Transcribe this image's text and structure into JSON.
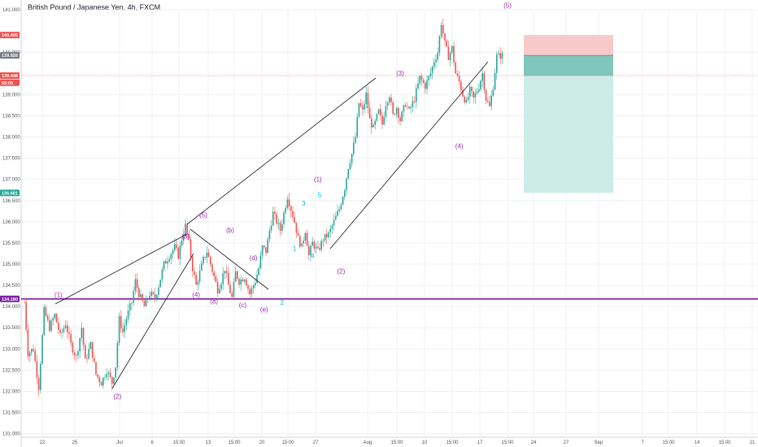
{
  "chart_title": "British Pound / Japanese Yen, 4h, FXCM",
  "colors": {
    "up": "#26a69a",
    "down": "#ef5350",
    "wave_primary": "#9c27b0",
    "wave_minor": "#00bcd4",
    "support": "#7b1fa2",
    "stop_zone": "#f8c9c9",
    "target_zone": "#cdece8",
    "entry_zone": "#7fc7bd",
    "trend_line": "#131722"
  },
  "chart_data": {
    "type": "candlestick",
    "x_ticks": [
      "22",
      "25",
      "Jul",
      "6",
      "15:00",
      "13",
      "15:00",
      "20",
      "15:00",
      "27",
      "Aug",
      "15:00",
      "10",
      "15:00",
      "17",
      "15:00",
      "24",
      "27",
      "Sep",
      "7",
      "15:00",
      "14",
      "15:00",
      "21"
    ],
    "y_ticks": [
      "131.000",
      "131.500",
      "132.000",
      "132.500",
      "133.000",
      "133.500",
      "134.000",
      "134.500",
      "135.000",
      "135.500",
      "136.000",
      "136.500",
      "137.000",
      "137.500",
      "138.000",
      "138.500",
      "139.000",
      "140.000",
      "141.000"
    ],
    "ylim": [
      130.98,
      141.2
    ],
    "price_labels": [
      {
        "text": "140.405",
        "value": 140.405,
        "color": "#ef5350"
      },
      {
        "text": "139.926",
        "value": 139.926,
        "color": "#787b86"
      },
      {
        "text": "139.448",
        "value": 139.448,
        "color": "#ef5350"
      },
      {
        "text": "55:05",
        "value": 139.28,
        "color": "#ef5350"
      },
      {
        "text": "136.681",
        "value": 136.681,
        "color": "#26a69a"
      },
      {
        "text": "134.180",
        "value": 134.18,
        "color": "#7b1fa2"
      }
    ],
    "support_level": 134.18,
    "position": {
      "entry": 139.926,
      "stop": 140.405,
      "target": 136.681,
      "current": 139.448
    },
    "path": [
      [
        0,
        134.1
      ],
      [
        4,
        132.9
      ],
      [
        10,
        133.0
      ],
      [
        16,
        132.1
      ],
      [
        22,
        133.9
      ],
      [
        28,
        133.5
      ],
      [
        34,
        133.8
      ],
      [
        40,
        133.3
      ],
      [
        46,
        133.6
      ],
      [
        52,
        133.1
      ],
      [
        58,
        132.8
      ],
      [
        64,
        133.5
      ],
      [
        68,
        132.7
      ],
      [
        74,
        133.1
      ],
      [
        80,
        132.4
      ],
      [
        86,
        132.2
      ],
      [
        92,
        132.5
      ],
      [
        98,
        132.2
      ],
      [
        102,
        132.6
      ],
      [
        106,
        133.7
      ],
      [
        110,
        133.4
      ],
      [
        115,
        133.8
      ],
      [
        120,
        134.1
      ],
      [
        124,
        134.6
      ],
      [
        128,
        134.3
      ],
      [
        134,
        134.0
      ],
      [
        140,
        134.3
      ],
      [
        146,
        134.2
      ],
      [
        150,
        134.5
      ],
      [
        156,
        135.0
      ],
      [
        162,
        135.2
      ],
      [
        168,
        135.4
      ],
      [
        172,
        135.2
      ],
      [
        176,
        135.6
      ],
      [
        180,
        135.9
      ],
      [
        184,
        135.5
      ],
      [
        188,
        134.9
      ],
      [
        192,
        134.5
      ],
      [
        196,
        134.8
      ],
      [
        200,
        135.1
      ],
      [
        204,
        135.3
      ],
      [
        208,
        135.0
      ],
      [
        212,
        134.7
      ],
      [
        216,
        134.4
      ],
      [
        220,
        134.6
      ],
      [
        224,
        134.9
      ],
      [
        228,
        134.5
      ],
      [
        232,
        134.2
      ],
      [
        236,
        134.8
      ],
      [
        240,
        134.6
      ],
      [
        246,
        134.7
      ],
      [
        252,
        134.3
      ],
      [
        258,
        134.6
      ],
      [
        262,
        134.9
      ],
      [
        266,
        135.4
      ],
      [
        270,
        135.3
      ],
      [
        274,
        135.8
      ],
      [
        278,
        136.2
      ],
      [
        282,
        136.0
      ],
      [
        286,
        135.8
      ],
      [
        290,
        136.2
      ],
      [
        294,
        136.6
      ],
      [
        298,
        136.3
      ],
      [
        302,
        136.0
      ],
      [
        306,
        135.6
      ],
      [
        310,
        135.4
      ],
      [
        314,
        135.8
      ],
      [
        318,
        135.2
      ],
      [
        322,
        135.5
      ],
      [
        328,
        135.3
      ],
      [
        334,
        135.6
      ],
      [
        340,
        135.7
      ],
      [
        346,
        136.0
      ],
      [
        352,
        136.3
      ],
      [
        358,
        136.8
      ],
      [
        362,
        137.3
      ],
      [
        366,
        137.6
      ],
      [
        370,
        138.0
      ],
      [
        374,
        138.8
      ],
      [
        378,
        138.6
      ],
      [
        382,
        139.0
      ],
      [
        386,
        138.4
      ],
      [
        390,
        138.2
      ],
      [
        396,
        138.6
      ],
      [
        400,
        138.3
      ],
      [
        404,
        138.8
      ],
      [
        408,
        139.0
      ],
      [
        412,
        138.5
      ],
      [
        416,
        138.7
      ],
      [
        420,
        138.4
      ],
      [
        426,
        138.8
      ],
      [
        430,
        138.6
      ],
      [
        436,
        138.9
      ],
      [
        442,
        139.4
      ],
      [
        448,
        139.2
      ],
      [
        454,
        139.5
      ],
      [
        458,
        139.8
      ],
      [
        462,
        140.0
      ],
      [
        466,
        140.7
      ],
      [
        470,
        140.2
      ],
      [
        474,
        139.9
      ],
      [
        478,
        140.1
      ],
      [
        482,
        139.5
      ],
      [
        486,
        139.3
      ],
      [
        490,
        139.0
      ],
      [
        494,
        138.8
      ],
      [
        498,
        139.1
      ],
      [
        502,
        138.9
      ],
      [
        508,
        139.2
      ],
      [
        512,
        139.5
      ],
      [
        516,
        138.9
      ],
      [
        520,
        138.7
      ],
      [
        524,
        139.2
      ],
      [
        528,
        139.9
      ],
      [
        534,
        139.926
      ]
    ],
    "wave_labels": [
      {
        "text": "(1)",
        "color": "#9c27b0",
        "t": 38,
        "v": 134.22
      },
      {
        "text": "(2)",
        "color": "#9c27b0",
        "t": 104,
        "v": 131.83
      },
      {
        "text": "(3)",
        "color": "#9c27b0",
        "t": 180,
        "v": 135.6
      },
      {
        "text": "(4)",
        "color": "#9c27b0",
        "t": 192,
        "v": 134.22
      },
      {
        "text": "(5)",
        "color": "#9c27b0",
        "t": 200,
        "v": 136.1
      },
      {
        "text": "(a)",
        "color": "#9c27b0",
        "t": 212,
        "v": 134.07
      },
      {
        "text": "(b)",
        "color": "#9c27b0",
        "t": 230,
        "v": 135.75
      },
      {
        "text": "(c)",
        "color": "#9c27b0",
        "t": 244,
        "v": 133.98
      },
      {
        "text": "(d)",
        "color": "#9c27b0",
        "t": 256,
        "v": 135.1
      },
      {
        "text": "(e)",
        "color": "#9c27b0",
        "t": 268,
        "v": 133.88
      },
      {
        "text": "1",
        "color": "#00bcd4",
        "t": 302,
        "v": 135.32
      },
      {
        "text": "2",
        "color": "#00bcd4",
        "t": 288,
        "v": 134.04
      },
      {
        "text": "3",
        "color": "#00bcd4",
        "t": 312,
        "v": 136.38
      },
      {
        "text": "4",
        "color": "#00bcd4",
        "t": 322,
        "v": 135.14
      },
      {
        "text": "5",
        "color": "#00bcd4",
        "t": 330,
        "v": 136.58
      },
      {
        "text": "(1)",
        "color": "#9c27b0",
        "t": 328,
        "v": 136.95
      },
      {
        "text": "(2)",
        "color": "#9c27b0",
        "t": 354,
        "v": 134.78
      },
      {
        "text": "(3)",
        "color": "#9c27b0",
        "t": 420,
        "v": 139.45
      },
      {
        "text": "(4)",
        "color": "#9c27b0",
        "t": 486,
        "v": 137.73
      },
      {
        "text": "(5)",
        "color": "#9c27b0",
        "t": 540,
        "v": 141.05
      }
    ]
  }
}
